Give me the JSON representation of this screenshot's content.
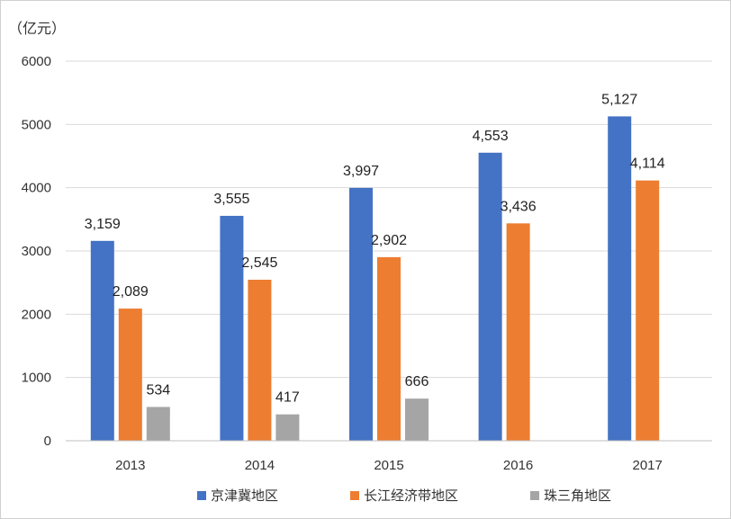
{
  "chart_data": {
    "type": "bar",
    "unit_label": "（亿元）",
    "categories": [
      "2013",
      "2014",
      "2015",
      "2016",
      "2017"
    ],
    "series": [
      {
        "name": "京津冀地区",
        "color": "#4472C4",
        "values": [
          3159,
          3555,
          3997,
          4553,
          5127
        ],
        "labels": [
          "3,159",
          "3,555",
          "3,997",
          "4,553",
          "5,127"
        ]
      },
      {
        "name": "长江经济带地区",
        "color": "#ED7D31",
        "values": [
          2089,
          2545,
          2902,
          3436,
          4114
        ],
        "labels": [
          "2,089",
          "2,545",
          "2,902",
          "3,436",
          "4,114"
        ]
      },
      {
        "name": "珠三角地区",
        "color": "#A5A5A5",
        "values": [
          534,
          417,
          666,
          null,
          null
        ],
        "labels": [
          "534",
          "417",
          "666",
          "",
          ""
        ]
      }
    ],
    "yticks": [
      "0",
      "1000",
      "2000",
      "3000",
      "4000",
      "5000",
      "6000"
    ],
    "ylim": [
      0,
      6000
    ],
    "grid": true,
    "legend_position": "bottom"
  }
}
